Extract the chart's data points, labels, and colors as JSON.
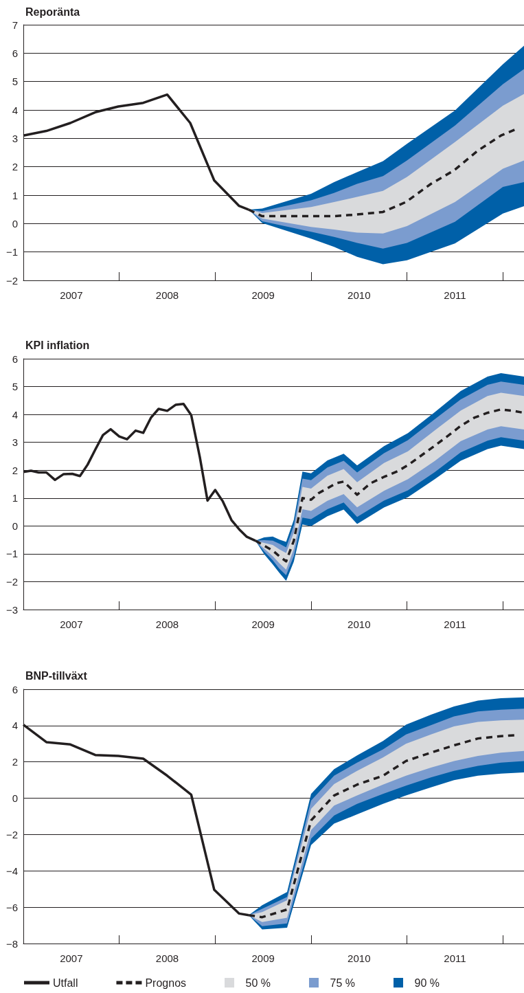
{
  "chart_data": [
    {
      "type": "line",
      "title": "Reporänta",
      "xlim": [
        2007,
        2012.22
      ],
      "ylim": [
        -2,
        7
      ],
      "xticks": [
        {
          "value": 2008,
          "label": null
        },
        {
          "value": 2009,
          "label": null
        },
        {
          "value": 2010,
          "label": null
        },
        {
          "value": 2011,
          "label": null
        },
        {
          "value": 2012,
          "label": null
        },
        {
          "value": 2007.5,
          "label": "2007"
        },
        {
          "value": 2008.5,
          "label": "2008"
        },
        {
          "value": 2009.5,
          "label": "2009"
        },
        {
          "value": 2010.5,
          "label": "2010"
        },
        {
          "value": 2011.5,
          "label": "2011"
        }
      ],
      "yticks": [
        {
          "value": -2,
          "label": "−2"
        },
        {
          "value": -1,
          "label": "−1"
        },
        0,
        1,
        2,
        3,
        4,
        5,
        6,
        7
      ],
      "grid": "y",
      "series": [
        {
          "type": "line",
          "color": "#231f20",
          "line_style": "solid",
          "x": [
            2007,
            2007.24,
            2007.49,
            2007.75,
            2007.99,
            2008.25,
            2008.5,
            2008.74,
            2008.99,
            2009.25,
            2009.35
          ],
          "values": [
            3.1,
            3.26,
            3.54,
            3.92,
            4.12,
            4.25,
            4.54,
            3.54,
            1.52,
            0.62,
            0.49
          ]
        },
        {
          "type": "line",
          "color": "#231f20",
          "line_style": "dashed",
          "x": [
            2009.35,
            2009.49,
            2009.75,
            2010.0,
            2010.24,
            2010.48,
            2010.75,
            2010.99,
            2011.25,
            2011.49,
            2011.74,
            2011.98,
            2012.14
          ],
          "values": [
            0.49,
            0.26,
            0.26,
            0.26,
            0.26,
            0.32,
            0.41,
            0.76,
            1.4,
            1.87,
            2.57,
            3.1,
            3.33
          ]
        },
        {
          "type": "line",
          "color": "#d9dadc",
          "x": [
            2009.35,
            2009.49,
            2010.0,
            2010.24,
            2010.48,
            2010.75,
            2011.0,
            2011.5,
            2012.0,
            2012.22
          ],
          "values": [
            null,
            null,
            null,
            null,
            null,
            null,
            null,
            null,
            null,
            null
          ],
          "lower": [
            0.49,
            0.18,
            -0.12,
            -0.21,
            -0.32,
            -0.35,
            -0.09,
            0.76,
            1.93,
            2.22
          ],
          "upper": [
            0.49,
            0.37,
            0.58,
            0.76,
            0.94,
            1.15,
            1.64,
            2.87,
            4.15,
            4.56
          ]
        },
        {
          "type": "line",
          "color": "#7b9ccf",
          "x": [
            2009.35,
            2009.49,
            2010.0,
            2010.24,
            2010.48,
            2010.75,
            2011.0,
            2011.5,
            2012.0,
            2012.22
          ],
          "values": [
            null,
            null,
            null,
            null,
            null,
            null,
            null,
            null,
            null,
            null
          ],
          "lower": [
            0.49,
            0.08,
            -0.29,
            -0.47,
            -0.68,
            -0.88,
            -0.68,
            0.06,
            1.29,
            1.46
          ],
          "upper": [
            0.49,
            0.44,
            0.82,
            1.08,
            1.4,
            1.67,
            2.22,
            3.45,
            4.91,
            5.44
          ]
        },
        {
          "type": "line",
          "color": "#0060a8",
          "x": [
            2009.35,
            2009.49,
            2010.0,
            2010.24,
            2010.48,
            2010.75,
            2011.0,
            2011.5,
            2012.0,
            2012.22
          ],
          "values": [
            null,
            null,
            null,
            null,
            null,
            null,
            null,
            null,
            null,
            null
          ],
          "lower": [
            0.49,
            0.02,
            -0.53,
            -0.82,
            -1.17,
            -1.43,
            -1.29,
            -0.7,
            0.35,
            0.61
          ],
          "upper": [
            0.49,
            0.53,
            1.05,
            1.46,
            1.81,
            2.2,
            2.81,
            3.98,
            5.61,
            6.26
          ]
        }
      ]
    },
    {
      "type": "line",
      "title": "KPI inflation",
      "xlim": [
        2007,
        2012.22
      ],
      "ylim": [
        -3,
        6
      ],
      "xticks": [
        {
          "value": 2008,
          "label": null
        },
        {
          "value": 2009,
          "label": null
        },
        {
          "value": 2010,
          "label": null
        },
        {
          "value": 2011,
          "label": null
        },
        {
          "value": 2012,
          "label": null
        },
        {
          "value": 2007.5,
          "label": "2007"
        },
        {
          "value": 2008.5,
          "label": "2008"
        },
        {
          "value": 2009.5,
          "label": "2009"
        },
        {
          "value": 2010.5,
          "label": "2010"
        },
        {
          "value": 2011.5,
          "label": "2011"
        }
      ],
      "yticks": [
        {
          "value": -3,
          "label": "−3"
        },
        {
          "value": -2,
          "label": "−2"
        },
        {
          "value": -1,
          "label": "−1"
        },
        0,
        1,
        2,
        3,
        4,
        5,
        6
      ],
      "grid": "y",
      "series": [
        {
          "type": "line",
          "color": "#231f20",
          "line_style": "solid",
          "x": [
            2007,
            2007.08,
            2007.16,
            2007.24,
            2007.33,
            2007.42,
            2007.51,
            2007.59,
            2007.67,
            2007.75,
            2007.83,
            2007.91,
            2008.0,
            2008.08,
            2008.17,
            2008.25,
            2008.33,
            2008.41,
            2008.5,
            2008.59,
            2008.67,
            2008.75,
            2008.84,
            2008.92,
            2009.0,
            2009.08,
            2009.17,
            2009.25,
            2009.33,
            2009.42
          ],
          "values": [
            1.94,
            1.98,
            1.92,
            1.92,
            1.65,
            1.86,
            1.87,
            1.79,
            2.2,
            2.74,
            3.26,
            3.47,
            3.21,
            3.11,
            3.42,
            3.34,
            3.88,
            4.2,
            4.13,
            4.35,
            4.38,
            3.98,
            2.47,
            0.91,
            1.29,
            0.88,
            0.21,
            -0.12,
            -0.39,
            -0.53
          ]
        },
        {
          "type": "line",
          "color": "#231f20",
          "line_style": "dashed",
          "x": [
            2009.42,
            2009.51,
            2009.6,
            2009.67,
            2009.74,
            2009.82,
            2009.91,
            2010.0,
            2010.08,
            2010.17,
            2010.26,
            2010.34,
            2010.48,
            2010.62,
            2010.76,
            2010.9,
            2011.01,
            2011.15,
            2011.29,
            2011.43,
            2011.56,
            2011.7,
            2011.84,
            2011.98,
            2012.12,
            2012.22
          ],
          "values": [
            -0.53,
            -0.71,
            -0.88,
            -1.09,
            -1.27,
            -0.53,
            1.0,
            0.94,
            1.18,
            1.35,
            1.53,
            1.59,
            1.12,
            1.53,
            1.76,
            1.96,
            2.18,
            2.53,
            2.88,
            3.24,
            3.59,
            3.88,
            4.06,
            4.18,
            4.12,
            4.06
          ]
        },
        {
          "type": "line",
          "color": "#d9dadc",
          "x": [
            2009.42,
            2009.51,
            2009.6,
            2009.67,
            2009.74,
            2009.82,
            2009.91,
            2010.0,
            2010.17,
            2010.34,
            2010.48,
            2010.76,
            2011.01,
            2011.29,
            2011.56,
            2011.84,
            2011.98,
            2012.22
          ],
          "values": [
            null,
            null,
            null,
            null,
            null,
            null,
            null,
            null,
            null,
            null,
            null,
            null,
            null,
            null,
            null,
            null,
            null,
            null
          ],
          "lower": [
            -0.53,
            -0.81,
            -1.08,
            -1.34,
            -1.57,
            -0.83,
            0.6,
            0.54,
            0.9,
            1.14,
            0.67,
            1.26,
            1.68,
            2.33,
            3.04,
            3.46,
            3.58,
            3.46
          ],
          "upper": [
            -0.53,
            -0.61,
            -0.68,
            -0.84,
            -0.97,
            -0.23,
            1.4,
            1.34,
            1.8,
            2.04,
            1.57,
            2.26,
            2.68,
            3.43,
            4.14,
            4.66,
            4.78,
            4.66
          ]
        },
        {
          "type": "line",
          "color": "#7b9ccf",
          "x": [
            2009.42,
            2009.51,
            2009.6,
            2009.67,
            2009.74,
            2009.82,
            2009.91,
            2010.0,
            2010.17,
            2010.34,
            2010.48,
            2010.76,
            2011.01,
            2011.29,
            2011.56,
            2011.84,
            2011.98,
            2012.22
          ],
          "values": [
            null,
            null,
            null,
            null,
            null,
            null,
            null,
            null,
            null,
            null,
            null,
            null,
            null,
            null,
            null,
            null,
            null,
            null
          ],
          "lower": [
            -0.53,
            -0.91,
            -1.23,
            -1.54,
            -1.77,
            -1.08,
            0.3,
            0.24,
            0.6,
            0.84,
            0.32,
            0.91,
            1.28,
            1.93,
            2.64,
            3.06,
            3.18,
            3.06
          ],
          "upper": [
            -0.53,
            -0.51,
            -0.53,
            -0.64,
            -0.77,
            0.02,
            1.7,
            1.64,
            2.1,
            2.34,
            1.92,
            2.61,
            3.08,
            3.83,
            4.54,
            5.06,
            5.18,
            5.06
          ]
        },
        {
          "type": "line",
          "color": "#0060a8",
          "x": [
            2009.42,
            2009.51,
            2009.6,
            2009.67,
            2009.74,
            2009.82,
            2009.91,
            2010.0,
            2010.17,
            2010.34,
            2010.48,
            2010.76,
            2011.01,
            2011.29,
            2011.56,
            2011.84,
            2011.98,
            2012.22
          ],
          "values": [
            null,
            null,
            null,
            null,
            null,
            null,
            null,
            null,
            null,
            null,
            null,
            null,
            null,
            null,
            null,
            null,
            null,
            null
          ],
          "lower": [
            -0.53,
            -1.01,
            -1.38,
            -1.69,
            -1.97,
            -1.28,
            0.05,
            -0.01,
            0.35,
            0.59,
            0.07,
            0.66,
            1.03,
            1.68,
            2.34,
            2.76,
            2.88,
            2.76
          ],
          "upper": [
            -0.53,
            -0.41,
            -0.38,
            -0.49,
            -0.57,
            0.22,
            1.95,
            1.89,
            2.35,
            2.59,
            2.17,
            2.86,
            3.33,
            4.08,
            4.84,
            5.36,
            5.48,
            5.36
          ]
        }
      ]
    },
    {
      "type": "line",
      "title": "BNP-tillväxt",
      "xlim": [
        2007,
        2012.22
      ],
      "ylim": [
        -8,
        6
      ],
      "xticks": [
        {
          "value": 2008,
          "label": null
        },
        {
          "value": 2009,
          "label": null
        },
        {
          "value": 2010,
          "label": null
        },
        {
          "value": 2011,
          "label": null
        },
        {
          "value": 2012,
          "label": null
        },
        {
          "value": 2007.5,
          "label": "2007"
        },
        {
          "value": 2008.5,
          "label": "2008"
        },
        {
          "value": 2009.5,
          "label": "2009"
        },
        {
          "value": 2010.5,
          "label": "2010"
        },
        {
          "value": 2011.5,
          "label": "2011"
        }
      ],
      "yticks": [
        {
          "value": -8,
          "label": "−8"
        },
        {
          "value": -6,
          "label": "−6"
        },
        {
          "value": -4,
          "label": "−4"
        },
        {
          "value": -2,
          "label": "−2"
        },
        0,
        2,
        4,
        6
      ],
      "grid": "y",
      "legend": "bottom",
      "series": [
        {
          "name": "Utfall",
          "type": "line",
          "color": "#231f20",
          "line_style": "solid",
          "x": [
            2007,
            2007.24,
            2007.49,
            2007.75,
            2007.99,
            2008.25,
            2008.5,
            2008.75,
            2008.99,
            2009.25,
            2009.35
          ],
          "values": [
            4.05,
            3.09,
            2.96,
            2.38,
            2.33,
            2.18,
            1.24,
            0.2,
            -5.04,
            -6.35,
            -6.44
          ]
        },
        {
          "name": "Prognos",
          "type": "line",
          "color": "#231f20",
          "line_style": "dashed",
          "x": [
            2009.35,
            2009.49,
            2009.75,
            2010.0,
            2010.24,
            2010.48,
            2010.75,
            2010.99,
            2011.25,
            2011.49,
            2011.74,
            2011.98,
            2012.14
          ],
          "values": [
            -6.44,
            -6.55,
            -6.13,
            -1.22,
            0.15,
            0.75,
            1.24,
            2.05,
            2.51,
            2.91,
            3.29,
            3.42,
            3.47
          ]
        },
        {
          "name": "50 %",
          "type": "line",
          "color": "#d9dadc",
          "x": [
            2009.35,
            2009.49,
            2009.75,
            2010.0,
            2010.24,
            2010.48,
            2010.75,
            2010.99,
            2011.25,
            2011.49,
            2011.74,
            2011.98,
            2012.22
          ],
          "values": [
            null,
            null,
            null,
            null,
            null,
            null,
            null,
            null,
            null,
            null,
            null,
            null,
            null
          ],
          "lower": [
            -6.44,
            -6.82,
            -6.58,
            -1.76,
            -0.4,
            0.15,
            0.75,
            1.24,
            1.69,
            2.05,
            2.33,
            2.51,
            2.6
          ],
          "upper": [
            -6.44,
            -6.27,
            -5.62,
            -0.58,
            0.78,
            1.51,
            2.24,
            3.0,
            3.51,
            3.96,
            4.2,
            4.29,
            4.33
          ]
        },
        {
          "name": "75 %",
          "type": "line",
          "color": "#7b9ccf",
          "x": [
            2009.35,
            2009.49,
            2009.75,
            2010.0,
            2010.24,
            2010.48,
            2010.75,
            2010.99,
            2011.25,
            2011.49,
            2011.74,
            2011.98,
            2012.22
          ],
          "values": [
            null,
            null,
            null,
            null,
            null,
            null,
            null,
            null,
            null,
            null,
            null,
            null,
            null
          ],
          "lower": [
            -6.44,
            -7.04,
            -6.89,
            -2.22,
            -0.95,
            -0.31,
            0.24,
            0.69,
            1.15,
            1.51,
            1.78,
            1.96,
            2.05
          ],
          "upper": [
            -6.44,
            -6.09,
            -5.44,
            -0.13,
            1.24,
            1.96,
            2.69,
            3.51,
            4.02,
            4.51,
            4.78,
            4.87,
            4.93
          ]
        },
        {
          "name": "90 %",
          "type": "line",
          "color": "#0060a8",
          "x": [
            2009.35,
            2009.49,
            2009.75,
            2010.0,
            2010.24,
            2010.48,
            2010.75,
            2010.99,
            2011.25,
            2011.49,
            2011.74,
            2011.98,
            2012.22
          ],
          "values": [
            null,
            null,
            null,
            null,
            null,
            null,
            null,
            null,
            null,
            null,
            null,
            null,
            null
          ],
          "lower": [
            -6.44,
            -7.22,
            -7.13,
            -2.58,
            -1.4,
            -0.89,
            -0.31,
            0.15,
            0.6,
            1.0,
            1.24,
            1.36,
            1.42
          ],
          "upper": [
            -6.44,
            -5.89,
            -5.16,
            0.24,
            1.6,
            2.36,
            3.15,
            4.05,
            4.6,
            5.05,
            5.38,
            5.51,
            5.56
          ]
        }
      ]
    }
  ]
}
